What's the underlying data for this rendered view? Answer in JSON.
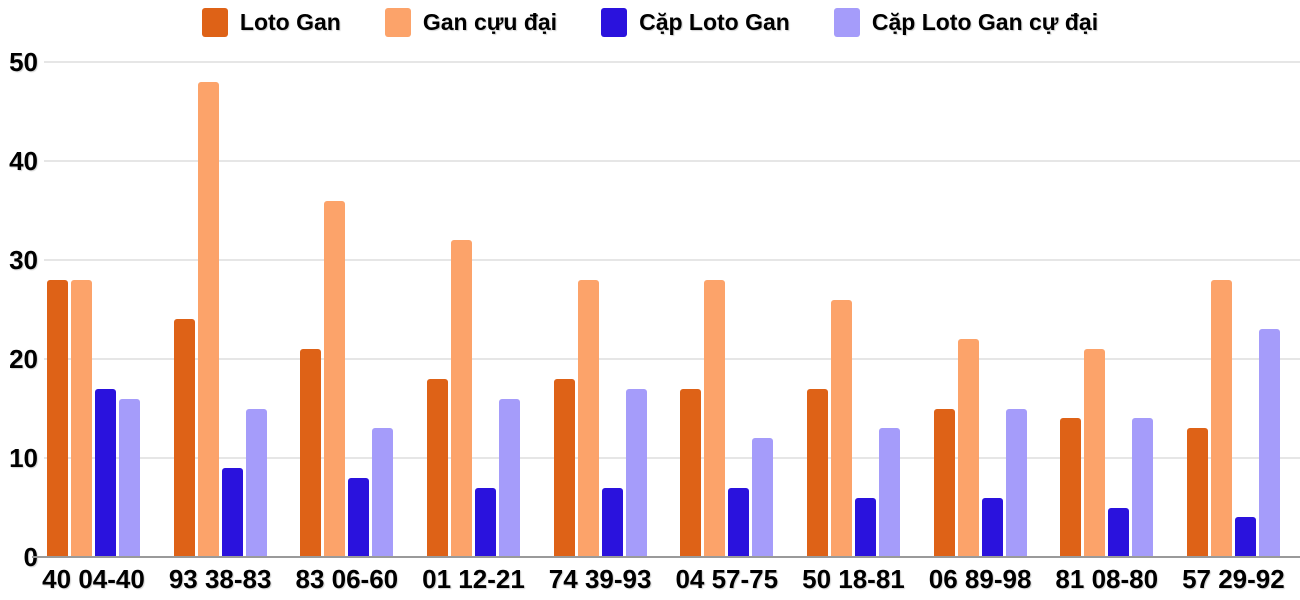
{
  "chart_data": {
    "type": "bar",
    "title": "",
    "xlabel": "",
    "ylabel": "",
    "categories": [
      "40 04-40",
      "93 38-83",
      "83 06-60",
      "01 12-21",
      "74 39-93",
      "04 57-75",
      "50 18-81",
      "06 89-98",
      "81 08-80",
      "57 29-92"
    ],
    "series": [
      {
        "name": "Loto Gan",
        "color": "#de6217",
        "values": [
          28,
          24,
          21,
          18,
          18,
          17,
          17,
          15,
          14,
          13
        ]
      },
      {
        "name": "Gan cựu đại",
        "color": "#fca36a",
        "values": [
          28,
          48,
          36,
          32,
          28,
          28,
          26,
          22,
          21,
          28
        ]
      },
      {
        "name": "Cặp Loto Gan",
        "color": "#2a12dd",
        "values": [
          17,
          9,
          8,
          7,
          7,
          7,
          6,
          6,
          5,
          4
        ]
      },
      {
        "name": "Cặp Loto Gan cự đại",
        "color": "#a59cfa",
        "values": [
          16,
          15,
          13,
          16,
          17,
          12,
          13,
          15,
          14,
          23
        ]
      }
    ],
    "ylim": [
      0,
      50
    ],
    "yticks": [
      0,
      10,
      20,
      30,
      40,
      50
    ],
    "grid": true,
    "legend_position": "top"
  },
  "colors": {
    "grid": "#e6e6e6",
    "zero_axis": "#9a9a9a",
    "text": "#000000",
    "background": "#ffffff"
  }
}
